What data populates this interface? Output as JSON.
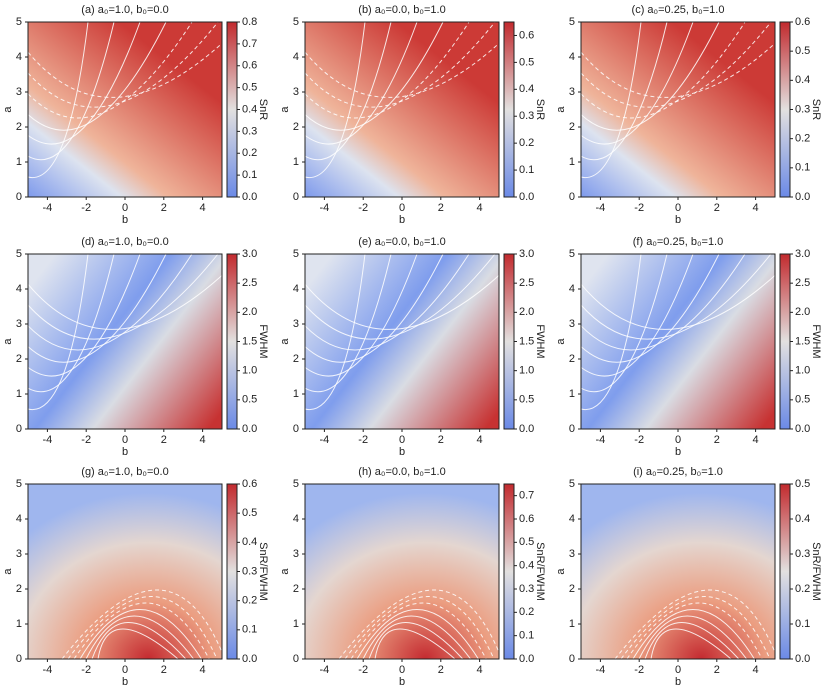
{
  "chart_data": [
    {
      "type": "heatmap",
      "title": "(a) a₀=1.0, b₀=0.0",
      "xlabel": "b",
      "ylabel": "a",
      "xlim": [
        -5,
        5
      ],
      "xticks": [
        -4,
        -2,
        0,
        2,
        4
      ],
      "ylim": [
        0,
        5
      ],
      "yticks": [
        0,
        1,
        2,
        3,
        4,
        5
      ],
      "colorbar_label": "SnR",
      "clim": [
        0,
        0.8
      ],
      "cticks": [
        {
          "value": 0,
          "label": "0.0"
        },
        0.1,
        0.2,
        0.3,
        0.4,
        0.5,
        0.6,
        0.7,
        0.8
      ]
    },
    {
      "type": "heatmap",
      "title": "(b) a₀=0.0, b₀=1.0",
      "xlabel": "b",
      "ylabel": "a",
      "xlim": [
        -5,
        5
      ],
      "xticks": [
        -4,
        -2,
        0,
        2,
        4
      ],
      "ylim": [
        0,
        5
      ],
      "yticks": [
        0,
        1,
        2,
        3,
        4,
        5
      ],
      "colorbar_label": "SnR",
      "clim": [
        0,
        0.65
      ],
      "cticks": [
        {
          "value": 0,
          "label": "0.0"
        },
        0.1,
        0.2,
        0.3,
        0.4,
        0.5,
        0.6
      ]
    },
    {
      "type": "heatmap",
      "title": "(c) a₀=0.25, b₀=1.0",
      "xlabel": "b",
      "ylabel": "a",
      "xlim": [
        -5,
        5
      ],
      "xticks": [
        -4,
        -2,
        0,
        2,
        4
      ],
      "ylim": [
        0,
        5
      ],
      "yticks": [
        0,
        1,
        2,
        3,
        4,
        5
      ],
      "colorbar_label": "SnR",
      "clim": [
        0,
        0.6
      ],
      "cticks": [
        {
          "value": 0,
          "label": "0.0"
        },
        0.1,
        0.2,
        0.3,
        0.4,
        0.5,
        0.6
      ]
    },
    {
      "type": "heatmap",
      "title": "(d) a₀=1.0, b₀=0.0",
      "xlabel": "b",
      "ylabel": "a",
      "xlim": [
        -5,
        5
      ],
      "xticks": [
        -4,
        -2,
        0,
        2,
        4
      ],
      "ylim": [
        0,
        5
      ],
      "yticks": [
        0,
        1,
        2,
        3,
        4,
        5
      ],
      "colorbar_label": "FWHM",
      "clim": [
        0,
        3
      ],
      "cticks": [
        {
          "value": 0,
          "label": "0.0"
        },
        0.5,
        {
          "value": 1,
          "label": "1.0"
        },
        1.5,
        {
          "value": 2,
          "label": "2.0"
        },
        2.5,
        {
          "value": 3,
          "label": "3.0"
        }
      ]
    },
    {
      "type": "heatmap",
      "title": "(e) a₀=0.0, b₀=1.0",
      "xlabel": "b",
      "ylabel": "a",
      "xlim": [
        -5,
        5
      ],
      "xticks": [
        -4,
        -2,
        0,
        2,
        4
      ],
      "ylim": [
        0,
        5
      ],
      "yticks": [
        0,
        1,
        2,
        3,
        4,
        5
      ],
      "colorbar_label": "FWHM",
      "clim": [
        0,
        3
      ],
      "cticks": [
        {
          "value": 0,
          "label": "0.0"
        },
        0.5,
        {
          "value": 1,
          "label": "1.0"
        },
        1.5,
        {
          "value": 2,
          "label": "2.0"
        },
        2.5,
        {
          "value": 3,
          "label": "3.0"
        }
      ]
    },
    {
      "type": "heatmap",
      "title": "(f) a₀=0.25, b₀=1.0",
      "xlabel": "b",
      "ylabel": "a",
      "xlim": [
        -5,
        5
      ],
      "xticks": [
        -4,
        -2,
        0,
        2,
        4
      ],
      "ylim": [
        0,
        5
      ],
      "yticks": [
        0,
        1,
        2,
        3,
        4,
        5
      ],
      "colorbar_label": "FWHM",
      "clim": [
        0,
        3
      ],
      "cticks": [
        {
          "value": 0,
          "label": "0.0"
        },
        0.5,
        {
          "value": 1,
          "label": "1.0"
        },
        1.5,
        {
          "value": 2,
          "label": "2.0"
        },
        2.5,
        {
          "value": 3,
          "label": "3.0"
        }
      ]
    },
    {
      "type": "heatmap",
      "title": "(g) a₀=1.0, b₀=0.0",
      "xlabel": "b",
      "ylabel": "a",
      "xlim": [
        -5,
        5
      ],
      "xticks": [
        -4,
        -2,
        0,
        2,
        4
      ],
      "ylim": [
        0,
        5
      ],
      "yticks": [
        0,
        1,
        2,
        3,
        4,
        5
      ],
      "colorbar_label": "SnR/FWHM",
      "clim": [
        0,
        0.6
      ],
      "cticks": [
        {
          "value": 0,
          "label": "0.0"
        },
        0.1,
        0.2,
        0.3,
        0.4,
        0.5,
        0.6
      ]
    },
    {
      "type": "heatmap",
      "title": "(h) a₀=0.0, b₀=1.0",
      "xlabel": "b",
      "ylabel": "a",
      "xlim": [
        -5,
        5
      ],
      "xticks": [
        -4,
        -2,
        0,
        2,
        4
      ],
      "ylim": [
        0,
        5
      ],
      "yticks": [
        0,
        1,
        2,
        3,
        4,
        5
      ],
      "colorbar_label": "SnR/FWHM",
      "clim": [
        0,
        0.75
      ],
      "cticks": [
        {
          "value": 0,
          "label": "0.0"
        },
        0.1,
        0.2,
        0.3,
        0.4,
        0.5,
        0.6,
        0.7
      ]
    },
    {
      "type": "heatmap",
      "title": "(i) a₀=0.25, b₀=1.0",
      "xlabel": "b",
      "ylabel": "a",
      "xlim": [
        -5,
        5
      ],
      "xticks": [
        -4,
        -2,
        0,
        2,
        4
      ],
      "ylim": [
        0,
        5
      ],
      "yticks": [
        0,
        1,
        2,
        3,
        4,
        5
      ],
      "colorbar_label": "SnR/FWHM",
      "clim": [
        0,
        0.5
      ],
      "cticks": [
        {
          "value": 0,
          "label": "0.0"
        },
        0.1,
        0.2,
        0.3,
        0.4,
        0.5
      ]
    }
  ]
}
